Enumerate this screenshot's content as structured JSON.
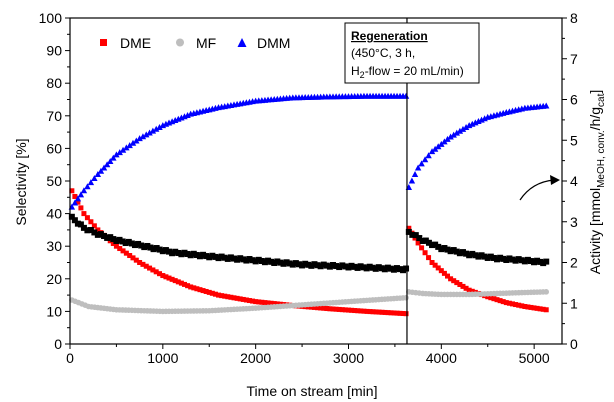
{
  "chart_data": {
    "type": "scatter",
    "title": "",
    "xlabel": "Time on stream [min]",
    "ylabel_left": "Selectivity [%]",
    "ylabel_right": {
      "base": "Activity [mmol",
      "sub": "MeOH, conv.",
      "mid": "/h/g",
      "sub2": "cat",
      "end": "]"
    },
    "xlim": [
      0,
      5300
    ],
    "ylim_left": [
      0,
      100
    ],
    "ylim_right": [
      0,
      8
    ],
    "x_ticks": [
      0,
      1000,
      2000,
      3000,
      4000,
      5000
    ],
    "y_left_ticks": [
      0,
      10,
      20,
      30,
      40,
      50,
      60,
      70,
      80,
      90,
      100
    ],
    "y_right_ticks": [
      0,
      1,
      2,
      3,
      4,
      5,
      6,
      7,
      8
    ],
    "grid": false,
    "legend_position": "top-left",
    "regeneration_time": 3630,
    "annotation": {
      "title": "Regeneration",
      "line1": "(450°C, 3 h,",
      "line2_pre": "H",
      "line2_sub": "2",
      "line2_post": "-flow = 20 mL/min)"
    },
    "series": [
      {
        "name": "DME",
        "axis": "left",
        "color": "#ff0000",
        "marker": "square",
        "points": [
          [
            20,
            47
          ],
          [
            150,
            40
          ],
          [
            300,
            35
          ],
          [
            500,
            30
          ],
          [
            750,
            25
          ],
          [
            1000,
            21
          ],
          [
            1300,
            17.5
          ],
          [
            1600,
            15
          ],
          [
            2000,
            13
          ],
          [
            2400,
            11.8
          ],
          [
            2800,
            10.8
          ],
          [
            3200,
            10
          ],
          [
            3620,
            9.3
          ],
          [
            3650,
            35.5
          ],
          [
            3750,
            31
          ],
          [
            3900,
            25
          ],
          [
            4100,
            20
          ],
          [
            4300,
            16.5
          ],
          [
            4500,
            14.5
          ],
          [
            4700,
            12.7
          ],
          [
            4900,
            11.5
          ],
          [
            5130,
            10.5
          ]
        ]
      },
      {
        "name": "MF",
        "axis": "left",
        "color": "#bebebe",
        "marker": "circle",
        "points": [
          [
            20,
            13.5
          ],
          [
            200,
            11.5
          ],
          [
            500,
            10.5
          ],
          [
            1000,
            10
          ],
          [
            1500,
            10.2
          ],
          [
            2000,
            11
          ],
          [
            2500,
            12
          ],
          [
            3000,
            13
          ],
          [
            3620,
            14.2
          ],
          [
            3650,
            16
          ],
          [
            3800,
            15.5
          ],
          [
            4000,
            15.2
          ],
          [
            4300,
            15.2
          ],
          [
            4600,
            15.5
          ],
          [
            4900,
            15.8
          ],
          [
            5130,
            16
          ]
        ]
      },
      {
        "name": "DMM",
        "axis": "left",
        "color": "#0000ff",
        "marker": "triangle",
        "points": [
          [
            20,
            42
          ],
          [
            150,
            47
          ],
          [
            300,
            52
          ],
          [
            500,
            58
          ],
          [
            750,
            63
          ],
          [
            1000,
            67
          ],
          [
            1300,
            70.5
          ],
          [
            1600,
            72.5
          ],
          [
            2000,
            74.5
          ],
          [
            2400,
            75.5
          ],
          [
            2800,
            75.8
          ],
          [
            3200,
            76
          ],
          [
            3620,
            76
          ],
          [
            3650,
            48
          ],
          [
            3750,
            54
          ],
          [
            3900,
            59
          ],
          [
            4100,
            63.5
          ],
          [
            4300,
            67
          ],
          [
            4500,
            69.5
          ],
          [
            4700,
            71
          ],
          [
            4900,
            72.3
          ],
          [
            5130,
            73
          ]
        ]
      },
      {
        "name": "Activity",
        "axis": "right",
        "color": "#000000",
        "marker": "square",
        "points": [
          [
            20,
            3.1
          ],
          [
            150,
            2.85
          ],
          [
            300,
            2.7
          ],
          [
            500,
            2.55
          ],
          [
            800,
            2.4
          ],
          [
            1100,
            2.25
          ],
          [
            1500,
            2.15
          ],
          [
            2000,
            2.05
          ],
          [
            2500,
            1.95
          ],
          [
            3000,
            1.9
          ],
          [
            3620,
            1.83
          ],
          [
            3650,
            2.75
          ],
          [
            3800,
            2.55
          ],
          [
            4000,
            2.35
          ],
          [
            4300,
            2.2
          ],
          [
            4600,
            2.1
          ],
          [
            4900,
            2.05
          ],
          [
            5130,
            2.0
          ]
        ]
      }
    ]
  }
}
